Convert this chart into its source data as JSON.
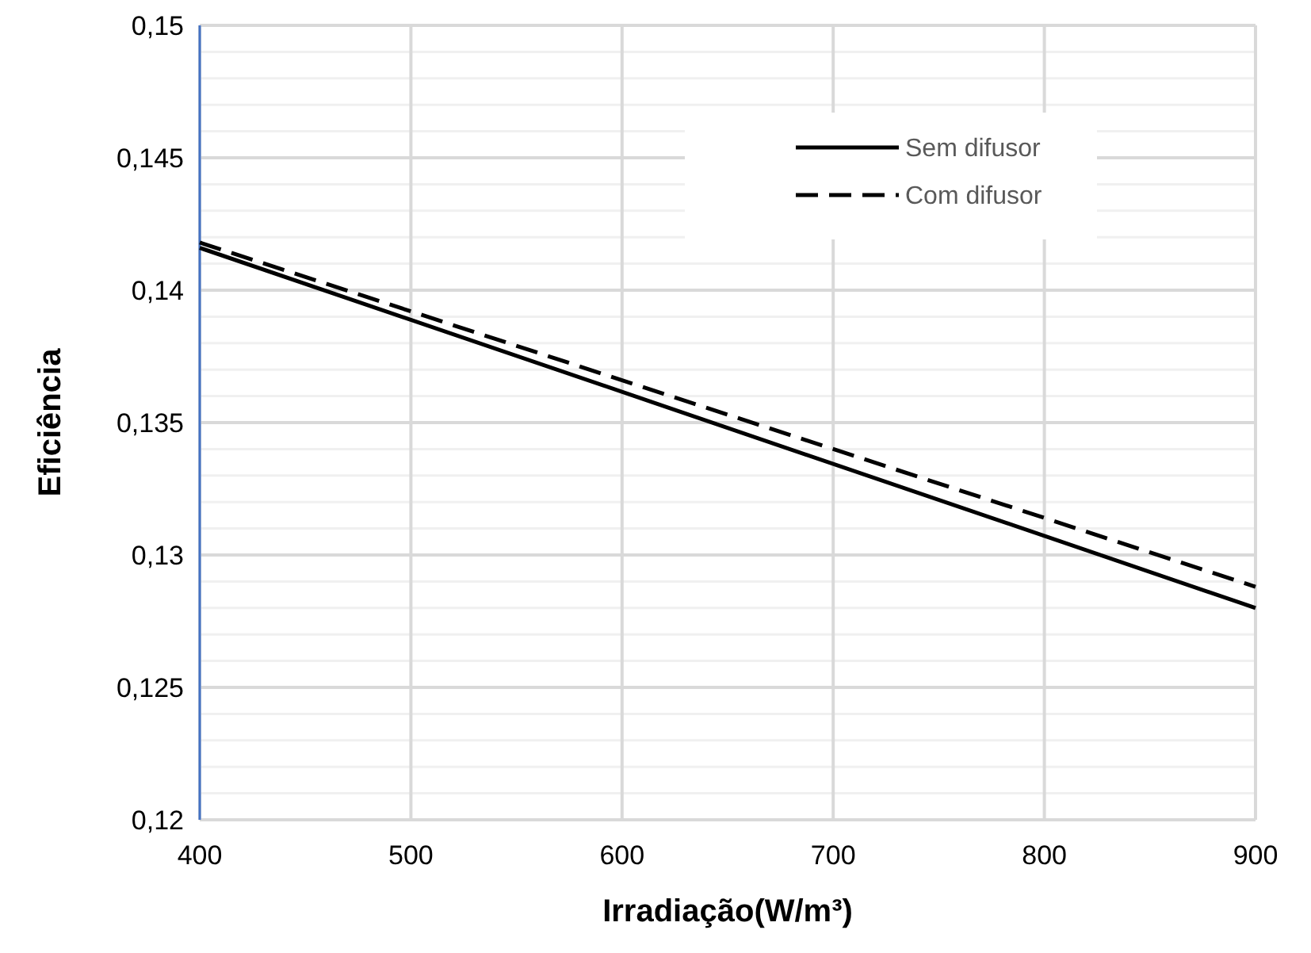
{
  "chart_data": {
    "type": "line",
    "xlabel": "Irradiação(W/m³)",
    "ylabel": "Eficiência",
    "x": [
      400,
      900
    ],
    "series": [
      {
        "name": "Sem difusor",
        "color": "#000000",
        "values": [
          0.1416,
          0.128
        ],
        "line_style": "solid"
      },
      {
        "name": "Com difusor",
        "color": "#000000",
        "values": [
          0.1418,
          0.1288
        ],
        "line_style": "dashed"
      }
    ],
    "xlim": [
      400,
      900
    ],
    "xticks": [
      400,
      500,
      600,
      700,
      800,
      900
    ],
    "ylim": [
      0.12,
      0.15
    ],
    "yticks": [
      {
        "value": 0.12,
        "label": "0,12"
      },
      {
        "value": 0.121,
        "label": null
      },
      {
        "value": 0.122,
        "label": null
      },
      {
        "value": 0.123,
        "label": null
      },
      {
        "value": 0.124,
        "label": null
      },
      {
        "value": 0.125,
        "label": "0,125"
      },
      {
        "value": 0.126,
        "label": null
      },
      {
        "value": 0.127,
        "label": null
      },
      {
        "value": 0.128,
        "label": null
      },
      {
        "value": 0.129,
        "label": null
      },
      {
        "value": 0.13,
        "label": "0,13"
      },
      {
        "value": 0.131,
        "label": null
      },
      {
        "value": 0.132,
        "label": null
      },
      {
        "value": 0.133,
        "label": null
      },
      {
        "value": 0.134,
        "label": null
      },
      {
        "value": 0.135,
        "label": "0,135"
      },
      {
        "value": 0.136,
        "label": null
      },
      {
        "value": 0.137,
        "label": null
      },
      {
        "value": 0.138,
        "label": null
      },
      {
        "value": 0.139,
        "label": null
      },
      {
        "value": 0.14,
        "label": "0,14"
      },
      {
        "value": 0.141,
        "label": null
      },
      {
        "value": 0.142,
        "label": null
      },
      {
        "value": 0.143,
        "label": null
      },
      {
        "value": 0.144,
        "label": null
      },
      {
        "value": 0.145,
        "label": "0,145"
      },
      {
        "value": 0.146,
        "label": null
      },
      {
        "value": 0.147,
        "label": null
      },
      {
        "value": 0.148,
        "label": null
      },
      {
        "value": 0.149,
        "label": null
      },
      {
        "value": 0.15,
        "label": "0,15"
      }
    ],
    "grid": true,
    "legend": "top right"
  }
}
